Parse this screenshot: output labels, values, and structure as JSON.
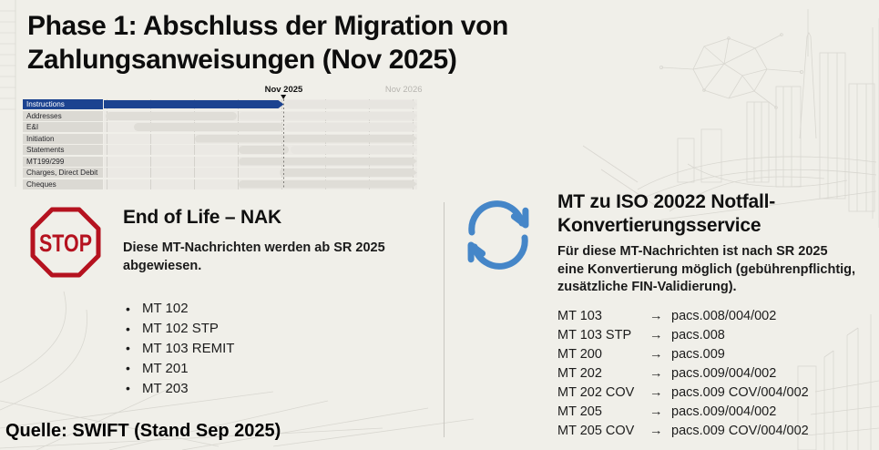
{
  "title": [
    "Phase 1: Abschluss der Migration von",
    "Zahlungsanweisungen (Nov 2025)"
  ],
  "source_note": "Quelle: SWIFT (Stand Sep 2025)",
  "colors": {
    "background": "#f0efe9",
    "accent_blue_bar": "#1c4390",
    "stop_red": "#b5121f",
    "sync_blue": "#4586c8",
    "gray_bar": "#dfddd7",
    "faded_label": "#b7b5b0"
  },
  "chart_data": {
    "type": "bar",
    "subtype": "gantt-timeline",
    "title": "",
    "milestones": [
      {
        "label": "Nov 2025",
        "position": 0.574,
        "emphasis": true,
        "marker": "triangle-down"
      },
      {
        "label": "Nov 2026",
        "position": 0.957,
        "emphasis": false,
        "marker": "none"
      }
    ],
    "cutoff_line": 0.574,
    "rows": [
      {
        "label": "Instructions",
        "start": 0.0,
        "end": 0.574,
        "style": "blue",
        "arrow": true,
        "ghost": true
      },
      {
        "label": "Addresses",
        "start": 0.006,
        "end": 0.425,
        "style": "gray",
        "arrow": false,
        "ghost": true
      },
      {
        "label": "E&I",
        "start": 0.095,
        "end": 0.574,
        "style": "gray",
        "arrow": false,
        "ghost": true
      },
      {
        "label": "Initiation",
        "start": 0.29,
        "end": 1.0,
        "style": "gray",
        "arrow": true,
        "ghost": false
      },
      {
        "label": "Statements",
        "start": 0.431,
        "end": 0.59,
        "style": "gray",
        "arrow": false,
        "ghost": true
      },
      {
        "label": "MT199/299",
        "start": 0.431,
        "end": 1.0,
        "style": "gray",
        "arrow": true,
        "ghost": false
      },
      {
        "label": "Charges, Direct Debit",
        "start": 0.562,
        "end": 1.0,
        "style": "gray",
        "arrow": true,
        "ghost": false
      },
      {
        "label": "Cheques",
        "start": 0.43,
        "end": 1.0,
        "style": "gray",
        "arrow": true,
        "ghost": false
      }
    ]
  },
  "left_panel": {
    "icon": "stop-sign-icon",
    "stop_label": "STOP",
    "heading": "End of Life – NAK",
    "description": [
      "Diese MT-Nachrichten werden ab SR 2025",
      "abgewiesen."
    ],
    "items": [
      "MT 102",
      "MT 102 STP",
      "MT 103 REMIT",
      "MT 201",
      "MT 203"
    ],
    "bullet_glyph": "•"
  },
  "right_panel": {
    "icon": "sync-arrows-icon",
    "heading": [
      "MT zu ISO 20022 Notfall-",
      "Konvertierungsservice"
    ],
    "description": [
      "Für diese MT-Nachrichten ist nach SR 2025",
      "eine Konvertierung möglich (gebührenpflichtig,",
      "zusätzliche FIN-Validierung)."
    ],
    "arrow_glyph": "→",
    "mappings": [
      {
        "mt": "MT 103",
        "iso": "pacs.008/004/002"
      },
      {
        "mt": "MT 103 STP",
        "iso": "pacs.008"
      },
      {
        "mt": "MT 200",
        "iso": "pacs.009"
      },
      {
        "mt": "MT 202",
        "iso": "pacs.009/004/002"
      },
      {
        "mt": "MT 202 COV",
        "iso": "pacs.009 COV/004/002"
      },
      {
        "mt": "MT 205",
        "iso": "pacs.009/004/002"
      },
      {
        "mt": "MT 205 COV",
        "iso": "pacs.009 COV/004/002"
      }
    ]
  }
}
